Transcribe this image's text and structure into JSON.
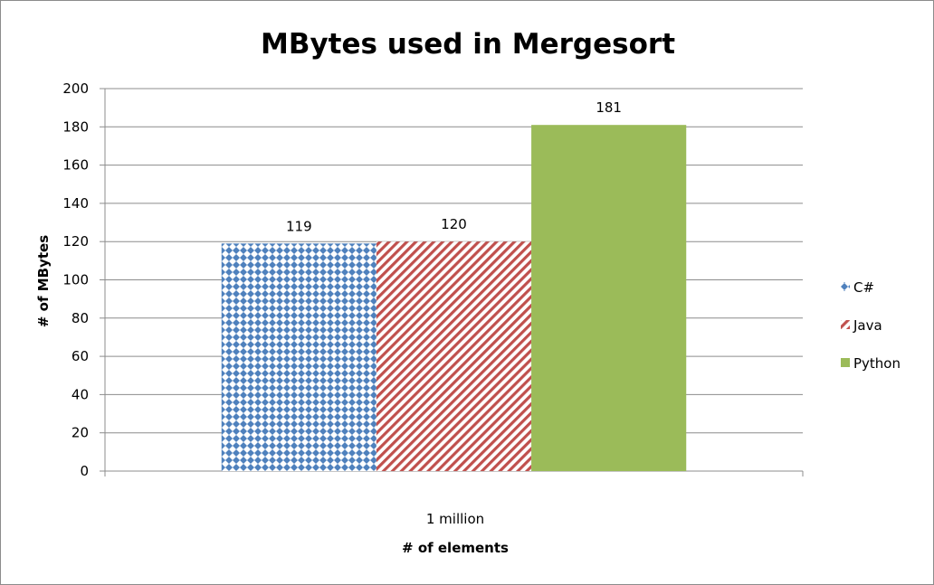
{
  "chart_data": {
    "type": "bar",
    "title": "MBytes used in Mergesort",
    "xlabel": "# of elements",
    "ylabel": "# of MBytes",
    "categories": [
      "1 million"
    ],
    "series": [
      {
        "name": "C#",
        "values": [
          119
        ],
        "color": "#4f81bd",
        "pattern": "diamond-grid"
      },
      {
        "name": "Java",
        "values": [
          120
        ],
        "color": "#c0504d",
        "pattern": "diagonal-stripes"
      },
      {
        "name": "Python",
        "values": [
          181
        ],
        "color": "#9bbb59",
        "pattern": "solid"
      }
    ],
    "ylim": [
      0,
      200
    ],
    "yticks": [
      0,
      20,
      40,
      60,
      80,
      100,
      120,
      140,
      160,
      180,
      200
    ],
    "grid": true,
    "legend_position": "right",
    "data_labels": true
  }
}
